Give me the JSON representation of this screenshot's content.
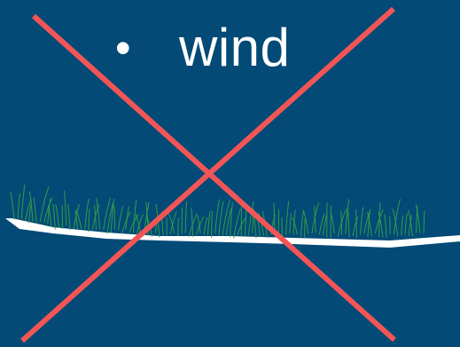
{
  "slide": {
    "bullet_symbol": "•",
    "bullet_text": "wind"
  },
  "colors": {
    "background": "#034a76",
    "cross": "#f25556",
    "grass": "#2f9e4a",
    "ground": "#ffffff",
    "text": "#ffffff"
  },
  "icons": {
    "cross": "cross-out-icon",
    "grass": "grass-icon"
  }
}
